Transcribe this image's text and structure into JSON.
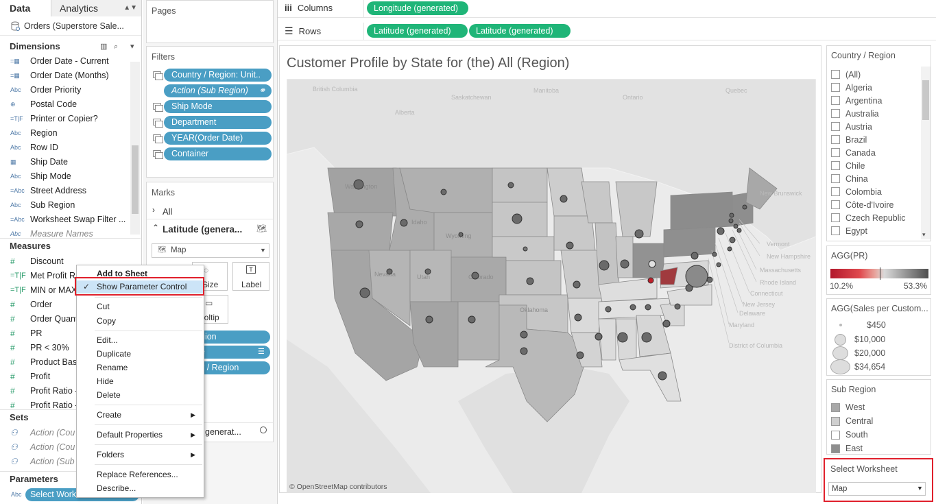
{
  "data_pane": {
    "tab_data": "Data",
    "tab_analytics": "Analytics",
    "datasource": "Orders (Superstore Sale...",
    "dimensions_title": "Dimensions",
    "dimensions": [
      {
        "type": "=date",
        "label": "Order Date - Current"
      },
      {
        "type": "=date",
        "label": "Order Date (Months)"
      },
      {
        "type": "Abc",
        "label": "Order Priority"
      },
      {
        "type": "globe",
        "label": "Postal Code"
      },
      {
        "type": "=T|F",
        "label": "Printer or Copier?"
      },
      {
        "type": "Abc",
        "label": "Region"
      },
      {
        "type": "Abc",
        "label": "Row ID"
      },
      {
        "type": "date",
        "label": "Ship Date"
      },
      {
        "type": "Abc",
        "label": "Ship Mode"
      },
      {
        "type": "=Abc",
        "label": "Street Address"
      },
      {
        "type": "Abc",
        "label": "Sub Region"
      },
      {
        "type": "=Abc",
        "label": "Worksheet Swap Filter ..."
      },
      {
        "type": "Abc",
        "label": "Measure Names"
      }
    ],
    "measures_title": "Measures",
    "measures": [
      {
        "type": "#",
        "label": "Discount"
      },
      {
        "type": "=T|F",
        "label": "Met Profit R"
      },
      {
        "type": "=T|F",
        "label": "MIN or MAX"
      },
      {
        "type": "#",
        "label": "Order"
      },
      {
        "type": "#",
        "label": "Order Quant"
      },
      {
        "type": "#",
        "label": "PR"
      },
      {
        "type": "#",
        "label": "PR < 30%"
      },
      {
        "type": "#",
        "label": "Product Bas"
      },
      {
        "type": "#",
        "label": "Profit"
      },
      {
        "type": "#",
        "label": "Profit Ratio -"
      },
      {
        "type": "#",
        "label": "Profit Ratio -"
      }
    ],
    "sets_title": "Sets",
    "sets": [
      "Action (Cou",
      "Action (Cou",
      "Action (Sub"
    ],
    "parameters_title": "Parameters",
    "parameter_pill": "Select Workshe"
  },
  "shelves": {
    "pages_title": "Pages",
    "filters_title": "Filters",
    "filters": [
      {
        "label": "Country / Region: Unit..",
        "italic": false
      },
      {
        "label": "Action (Sub Region)",
        "italic": true
      },
      {
        "label": "Ship Mode",
        "italic": false
      },
      {
        "label": "Department",
        "italic": false
      },
      {
        "label": "YEAR(Order Date)",
        "italic": false
      },
      {
        "label": "Container",
        "italic": false
      }
    ],
    "marks_title": "Marks",
    "marks_all": "All",
    "marks_latitude": "Latitude (genera...",
    "mark_type": "Map",
    "btn_size": "Size",
    "btn_label": "Label",
    "btn_tooltip": "ooltip",
    "pill_1": "gion",
    "pill_2": "e",
    "pill_3": "y / Region",
    "bottom_row": "generat...",
    "columns_label": "Columns",
    "rows_label": "Rows",
    "columns_pill": "Longitude (generated)",
    "rows_pills": [
      "Latitude (generated)",
      "Latitude (generated)"
    ]
  },
  "view": {
    "title": "Customer Profile by State for (the) All (Region)",
    "attribution": "© OpenStreetMap contributors",
    "map_labels": [
      "British Columbia",
      "Alberta",
      "Saskatchewan",
      "Manitoba",
      "Ontario",
      "Quebec",
      "New Brunswick",
      "Vermont",
      "New Hampshire",
      "Massachusetts",
      "Rhode Island",
      "Connecticut",
      "New Jersey",
      "Delaware",
      "Maryland",
      "District of Columbia",
      "Wyoming",
      "Nevada",
      "Utah",
      "Colorado",
      "Oklahoma",
      "Idaho",
      "Washington"
    ]
  },
  "legends": {
    "country_title": "Country / Region",
    "countries": [
      "(All)",
      "Algeria",
      "Argentina",
      "Australia",
      "Austria",
      "Brazil",
      "Canada",
      "Chile",
      "China",
      "Colombia",
      "Côte-d'Ivoire",
      "Czech Republic",
      "Egypt"
    ],
    "color_title": "AGG(PR)",
    "color_min": "10.2%",
    "color_max": "53.3%",
    "size_title": "AGG(Sales per Custom...",
    "sizes": [
      "$450",
      "$10,000",
      "$20,000",
      "$34,654"
    ],
    "subregion_title": "Sub Region",
    "subregions": [
      "West",
      "Central",
      "South",
      "East"
    ],
    "select_title": "Select Worksheet",
    "select_value": "Map"
  },
  "context_menu": {
    "add_to_sheet": "Add to Sheet",
    "show_param": "Show Parameter Control",
    "cut": "Cut",
    "copy": "Copy",
    "edit": "Edit...",
    "duplicate": "Duplicate",
    "rename": "Rename",
    "hide": "Hide",
    "delete": "Delete",
    "create": "Create",
    "default_props": "Default Properties",
    "folders": "Folders",
    "replace_refs": "Replace References...",
    "describe": "Describe..."
  },
  "colors": {
    "accent_blue": "#4a9ec4",
    "generated_green": "#1fb578",
    "highlight_red": "#e0202c",
    "menu_selected": "#cce4f7"
  }
}
